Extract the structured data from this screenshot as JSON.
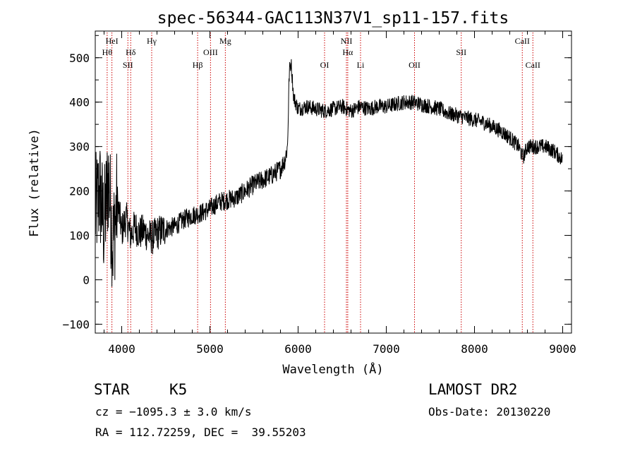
{
  "chart_data": {
    "type": "line",
    "title": "spec-56344-GAC113N37V1_sp11-157.fits",
    "xlabel": "Wavelength (Å)",
    "ylabel": "Flux (relative)",
    "xlim": [
      3700,
      9100
    ],
    "ylim": [
      -120,
      560
    ],
    "x_ticks": [
      4000,
      5000,
      6000,
      7000,
      8000,
      9000
    ],
    "y_ticks": [
      -100,
      0,
      100,
      200,
      300,
      400,
      500
    ],
    "grid": false,
    "line_color": "#000000",
    "marker_color": "#cc0000",
    "series": [
      {
        "x": [
          3700,
          3750,
          3800,
          3850,
          3900,
          3950,
          4000,
          4050,
          4100,
          4150,
          4200,
          4250,
          4300,
          4350,
          4400,
          4450,
          4500,
          4600,
          4700,
          4800,
          4900,
          5000,
          5100,
          5200,
          5300,
          5400,
          5500,
          5600,
          5700,
          5800,
          5850,
          5880,
          5900,
          5920,
          5950,
          6000,
          6100,
          6200,
          6300,
          6400,
          6500,
          6550,
          6600,
          6700,
          6800,
          6900,
          7000,
          7100,
          7200,
          7300,
          7400,
          7500,
          7600,
          7700,
          7800,
          7900,
          8000,
          8100,
          8200,
          8300,
          8400,
          8500,
          8550,
          8600,
          8700,
          8800,
          8900,
          9000
        ],
        "y": [
          150,
          200,
          120,
          230,
          80,
          180,
          110,
          140,
          100,
          120,
          105,
          110,
          100,
          95,
          105,
          110,
          115,
          120,
          135,
          145,
          150,
          160,
          175,
          180,
          185,
          200,
          215,
          225,
          235,
          250,
          270,
          300,
          470,
          490,
          410,
          385,
          390,
          385,
          380,
          385,
          390,
          385,
          380,
          390,
          385,
          390,
          390,
          395,
          400,
          400,
          395,
          390,
          385,
          375,
          370,
          365,
          360,
          355,
          345,
          335,
          320,
          300,
          275,
          300,
          300,
          300,
          290,
          270
        ]
      }
    ],
    "lines": [
      {
        "wl": 3835,
        "label": "Hθ",
        "row": 2
      },
      {
        "wl": 3889,
        "label": "HeI",
        "row": 1
      },
      {
        "wl": 4070,
        "label": "SII",
        "row": 3
      },
      {
        "wl": 4102,
        "label": "Hδ",
        "row": 2
      },
      {
        "wl": 4340,
        "label": "Hγ",
        "row": 1
      },
      {
        "wl": 4861,
        "label": "Hβ",
        "row": 3
      },
      {
        "wl": 5007,
        "label": "OIII",
        "row": 2
      },
      {
        "wl": 5175,
        "label": "Mg",
        "row": 1
      },
      {
        "wl": 6300,
        "label": "OI",
        "row": 3
      },
      {
        "wl": 6548,
        "label": "NII",
        "row": 1
      },
      {
        "wl": 6563,
        "label": "Hα",
        "row": 2
      },
      {
        "wl": 6708,
        "label": "Li",
        "row": 3
      },
      {
        "wl": 7320,
        "label": "OII",
        "row": 3
      },
      {
        "wl": 7850,
        "label": "SII",
        "row": 2
      },
      {
        "wl": 8542,
        "label": "CaII",
        "row": 1
      },
      {
        "wl": 8662,
        "label": "CaII",
        "row": 3
      }
    ]
  },
  "info": {
    "object_type": "STAR",
    "subclass": "K5",
    "survey": "LAMOST DR2",
    "redshift": "cz = −1095.3 ± 3.0 km/s",
    "obs_date": "Obs-Date: 20130220",
    "coords": "RA = 112.72259, DEC =  39.55203"
  }
}
